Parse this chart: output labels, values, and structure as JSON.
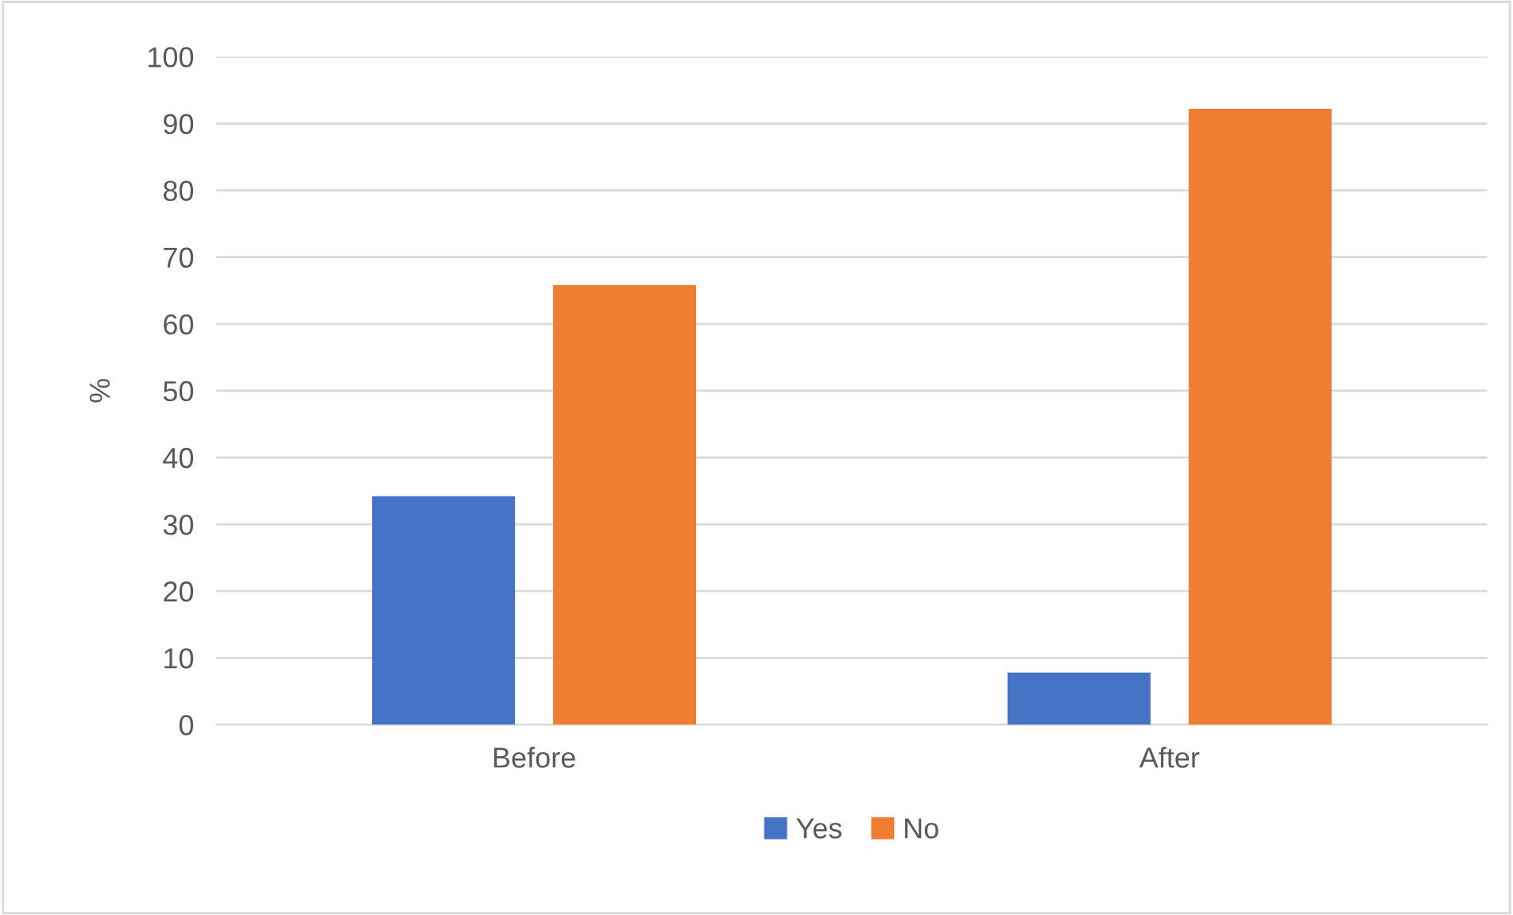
{
  "chart_data": {
    "type": "bar",
    "ylabel": "%",
    "categories": [
      "Before",
      "After"
    ],
    "series": [
      {
        "name": "Yes",
        "color": "#4472c4",
        "values": [
          34.2,
          7.8
        ]
      },
      {
        "name": "No",
        "color": "#ed7d31",
        "values": [
          65.8,
          92.2
        ]
      }
    ],
    "ylim": [
      0,
      100
    ],
    "yticks": [
      0,
      10,
      20,
      30,
      40,
      50,
      60,
      70,
      80,
      90,
      100
    ],
    "grid": "y",
    "legend": "bottom"
  }
}
